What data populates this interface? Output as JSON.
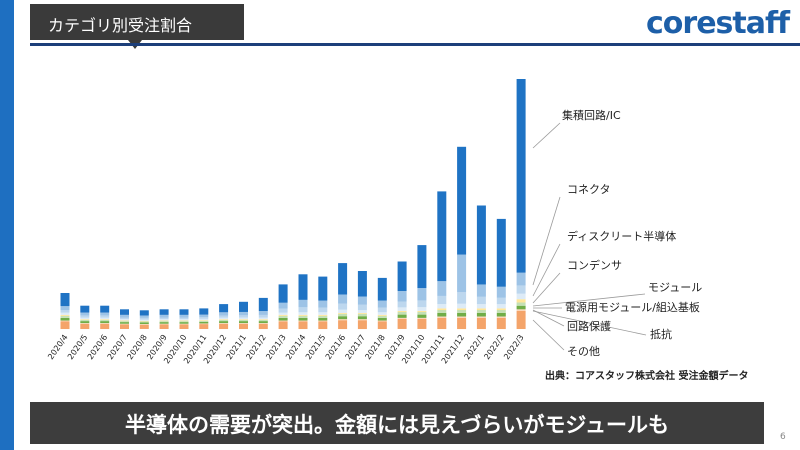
{
  "header": {
    "title": "カテゴリ別受注割合",
    "logo": "corestaff"
  },
  "footer": {
    "source": "出典：コアスタッフ株式会社 受注金額データ",
    "banner": "半導体の需要が突出。金額には見えづらいがモジュールも",
    "page_number": "6"
  },
  "colors": {
    "accent_blue": "#1e6fc1",
    "dark": "#3a3a3a",
    "header_line": "#1d3f7a"
  },
  "chart_data": {
    "type": "bar",
    "stacked": true,
    "categories": [
      "2020/4",
      "2020/5",
      "2020/6",
      "2020/7",
      "2020/8",
      "2020/9",
      "2020/10",
      "2020/11",
      "2020/12",
      "2021/1",
      "2021/2",
      "2021/3",
      "2021/4",
      "2021/5",
      "2021/6",
      "2021/7",
      "2021/8",
      "2021/9",
      "2021/10",
      "2021/11",
      "2021/12",
      "2022/1",
      "2022/2",
      "2022/3"
    ],
    "series": [
      {
        "name": "その他",
        "color": "#f4a46a",
        "values": [
          2.3,
          1.6,
          1.6,
          1.4,
          1.3,
          1.4,
          1.4,
          1.5,
          1.6,
          1.6,
          1.6,
          2.3,
          2.3,
          2.3,
          2.7,
          2.7,
          2.3,
          3.1,
          3.1,
          3.4,
          3.4,
          3.4,
          3.4,
          5.5
        ]
      },
      {
        "name": "抵抗",
        "color": "#fbd4b6",
        "values": [
          0.3,
          0.2,
          0.2,
          0.2,
          0.2,
          0.2,
          0.2,
          0.2,
          0.2,
          0.2,
          0.2,
          0.3,
          0.3,
          0.3,
          0.3,
          0.3,
          0.3,
          0.3,
          0.3,
          0.4,
          0.4,
          0.4,
          0.4,
          0.5
        ]
      },
      {
        "name": "回路保護",
        "color": "#70ad47",
        "values": [
          0.8,
          0.6,
          0.6,
          0.5,
          0.5,
          0.5,
          0.5,
          0.5,
          0.6,
          0.6,
          0.6,
          0.8,
          0.8,
          0.8,
          0.9,
          0.9,
          0.8,
          1.0,
          1.0,
          1.1,
          1.1,
          1.1,
          1.1,
          1.1
        ]
      },
      {
        "name": "電源用モジュール/組込基板",
        "color": "#c5e0b4",
        "values": [
          0.6,
          0.4,
          0.4,
          0.3,
          0.3,
          0.3,
          0.3,
          0.3,
          0.4,
          0.4,
          0.4,
          0.6,
          0.6,
          0.6,
          0.7,
          0.7,
          0.6,
          0.8,
          0.8,
          0.9,
          0.9,
          0.9,
          0.9,
          1.0
        ]
      },
      {
        "name": "モジュール",
        "color": "#ffe699",
        "values": [
          0.3,
          0.2,
          0.2,
          0.2,
          0.2,
          0.2,
          0.2,
          0.2,
          0.2,
          0.2,
          0.2,
          0.3,
          0.3,
          0.3,
          0.3,
          0.3,
          0.3,
          0.3,
          0.3,
          0.5,
          0.5,
          0.5,
          0.5,
          1.0
        ]
      },
      {
        "name": "コンデンサ",
        "color": "#ddebf7",
        "values": [
          0.7,
          0.5,
          0.5,
          0.4,
          0.4,
          0.4,
          0.4,
          0.4,
          0.5,
          0.5,
          0.5,
          0.7,
          0.8,
          0.8,
          1.0,
          0.9,
          0.8,
          1.1,
          1.2,
          1.3,
          1.4,
          1.3,
          1.3,
          1.7
        ]
      },
      {
        "name": "ディスクリート半導体",
        "color": "#bdd7ee",
        "values": [
          0.8,
          0.6,
          0.6,
          0.5,
          0.5,
          0.5,
          0.5,
          0.5,
          0.6,
          0.7,
          0.8,
          1.2,
          1.5,
          1.4,
          1.8,
          1.6,
          1.4,
          1.8,
          2.0,
          2.5,
          3.5,
          2.2,
          1.9,
          2.4
        ]
      },
      {
        "name": "コネクタ",
        "color": "#9dc3e6",
        "values": [
          1.2,
          0.9,
          0.9,
          0.8,
          0.7,
          0.8,
          0.8,
          0.8,
          1.0,
          1.0,
          1.2,
          1.8,
          2.3,
          2.2,
          2.8,
          2.5,
          2.2,
          3.2,
          3.8,
          4.5,
          11.5,
          3.8,
          3.4,
          4.0
        ]
      },
      {
        "name": "集積回路/IC",
        "color": "#1f73c4",
        "values": [
          4.0,
          2.1,
          2.1,
          1.7,
          1.6,
          1.7,
          1.7,
          1.9,
          2.5,
          3.1,
          4.0,
          5.6,
          7.8,
          7.3,
          9.6,
          7.8,
          6.9,
          9.0,
          13.1,
          27.4,
          32.9,
          24.1,
          20.7,
          59.1
        ]
      }
    ],
    "ylim": [
      0,
      76
    ],
    "legend": "right",
    "grid": false
  }
}
